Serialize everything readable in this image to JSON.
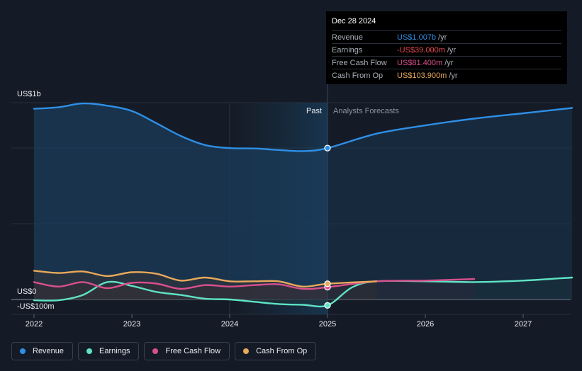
{
  "chart_data": {
    "type": "area",
    "y_axis": {
      "top_label": "US$1b",
      "zero_label": "US$0",
      "bottom_label": "-US$100m",
      "ylim": [
        -200,
        2600
      ]
    },
    "x_axis": {
      "ticks": [
        "2022",
        "2023",
        "2024",
        "2025",
        "2026",
        "2027"
      ],
      "xlim": [
        2021.8,
        2027.5
      ]
    },
    "regions": {
      "past_label": "Past",
      "forecast_label": "Analysts Forecasts",
      "divider_x": 2025.0,
      "highlight_start_x": 2024.0
    },
    "series": [
      {
        "name": "Revenue",
        "color": "#2e8fe6",
        "fill": true,
        "points": [
          [
            2022.0,
            2520
          ],
          [
            2022.25,
            2540
          ],
          [
            2022.5,
            2590
          ],
          [
            2022.75,
            2560
          ],
          [
            2023.0,
            2490
          ],
          [
            2023.25,
            2330
          ],
          [
            2023.5,
            2160
          ],
          [
            2023.75,
            2040
          ],
          [
            2024.0,
            2000
          ],
          [
            2024.25,
            1995
          ],
          [
            2024.5,
            1975
          ],
          [
            2024.75,
            1960
          ],
          [
            2025.0,
            2000
          ],
          [
            2025.5,
            2190
          ],
          [
            2026.0,
            2300
          ],
          [
            2026.5,
            2390
          ],
          [
            2027.0,
            2460
          ],
          [
            2027.5,
            2530
          ]
        ],
        "forecast_from": 2025.0
      },
      {
        "name": "Earnings",
        "color": "#5fe3c4",
        "fill": true,
        "points": [
          [
            2022.0,
            -10
          ],
          [
            2022.25,
            -10
          ],
          [
            2022.5,
            60
          ],
          [
            2022.75,
            230
          ],
          [
            2023.0,
            180
          ],
          [
            2023.25,
            100
          ],
          [
            2023.5,
            60
          ],
          [
            2023.75,
            10
          ],
          [
            2024.0,
            0
          ],
          [
            2024.25,
            -30
          ],
          [
            2024.5,
            -60
          ],
          [
            2024.75,
            -70
          ],
          [
            2025.0,
            -78
          ],
          [
            2025.25,
            160
          ],
          [
            2025.5,
            240
          ],
          [
            2026.0,
            240
          ],
          [
            2026.5,
            230
          ],
          [
            2027.0,
            250
          ],
          [
            2027.5,
            290
          ]
        ],
        "forecast_from": 2025.0
      },
      {
        "name": "Free Cash Flow",
        "color": "#d94f8e",
        "fill": true,
        "points": [
          [
            2022.0,
            230
          ],
          [
            2022.25,
            170
          ],
          [
            2022.5,
            230
          ],
          [
            2022.75,
            150
          ],
          [
            2023.0,
            220
          ],
          [
            2023.25,
            210
          ],
          [
            2023.5,
            140
          ],
          [
            2023.75,
            190
          ],
          [
            2024.0,
            170
          ],
          [
            2024.25,
            190
          ],
          [
            2024.5,
            200
          ],
          [
            2024.75,
            140
          ],
          [
            2025.0,
            163
          ],
          [
            2025.5,
            240
          ],
          [
            2026.0,
            250
          ],
          [
            2026.5,
            270
          ]
        ],
        "forecast_from": 2025.0
      },
      {
        "name": "Cash From Op",
        "color": "#e9a95b",
        "fill": true,
        "points": [
          [
            2022.0,
            380
          ],
          [
            2022.25,
            350
          ],
          [
            2022.5,
            370
          ],
          [
            2022.75,
            310
          ],
          [
            2023.0,
            360
          ],
          [
            2023.25,
            340
          ],
          [
            2023.5,
            250
          ],
          [
            2023.75,
            290
          ],
          [
            2024.0,
            240
          ],
          [
            2024.25,
            240
          ],
          [
            2024.5,
            240
          ],
          [
            2024.75,
            170
          ],
          [
            2025.0,
            208
          ],
          [
            2025.5,
            240
          ]
        ],
        "forecast_from": 2025.0
      }
    ],
    "markers": [
      {
        "series": "Revenue",
        "x": 2025.0,
        "y": 2000
      },
      {
        "series": "Earnings",
        "x": 2025.0,
        "y": -78
      },
      {
        "series": "Free Cash Flow",
        "x": 2025.0,
        "y": 163
      },
      {
        "series": "Cash From Op",
        "x": 2025.0,
        "y": 208
      }
    ]
  },
  "tooltip": {
    "date": "Dec 28 2024",
    "rows": [
      {
        "label": "Revenue",
        "value": "US$1.007b",
        "unit": "/yr",
        "color": "#2e8fe6"
      },
      {
        "label": "Earnings",
        "value": "-US$39.000m",
        "unit": "/yr",
        "color": "#e8484e"
      },
      {
        "label": "Free Cash Flow",
        "value": "US$81.400m",
        "unit": "/yr",
        "color": "#d94f8e"
      },
      {
        "label": "Cash From Op",
        "value": "US$103.900m",
        "unit": "/yr",
        "color": "#e9a95b"
      }
    ]
  },
  "legend": [
    {
      "label": "Revenue",
      "color": "#2e8fe6"
    },
    {
      "label": "Earnings",
      "color": "#5fe3c4"
    },
    {
      "label": "Free Cash Flow",
      "color": "#d94f8e"
    },
    {
      "label": "Cash From Op",
      "color": "#e9a95b"
    }
  ]
}
